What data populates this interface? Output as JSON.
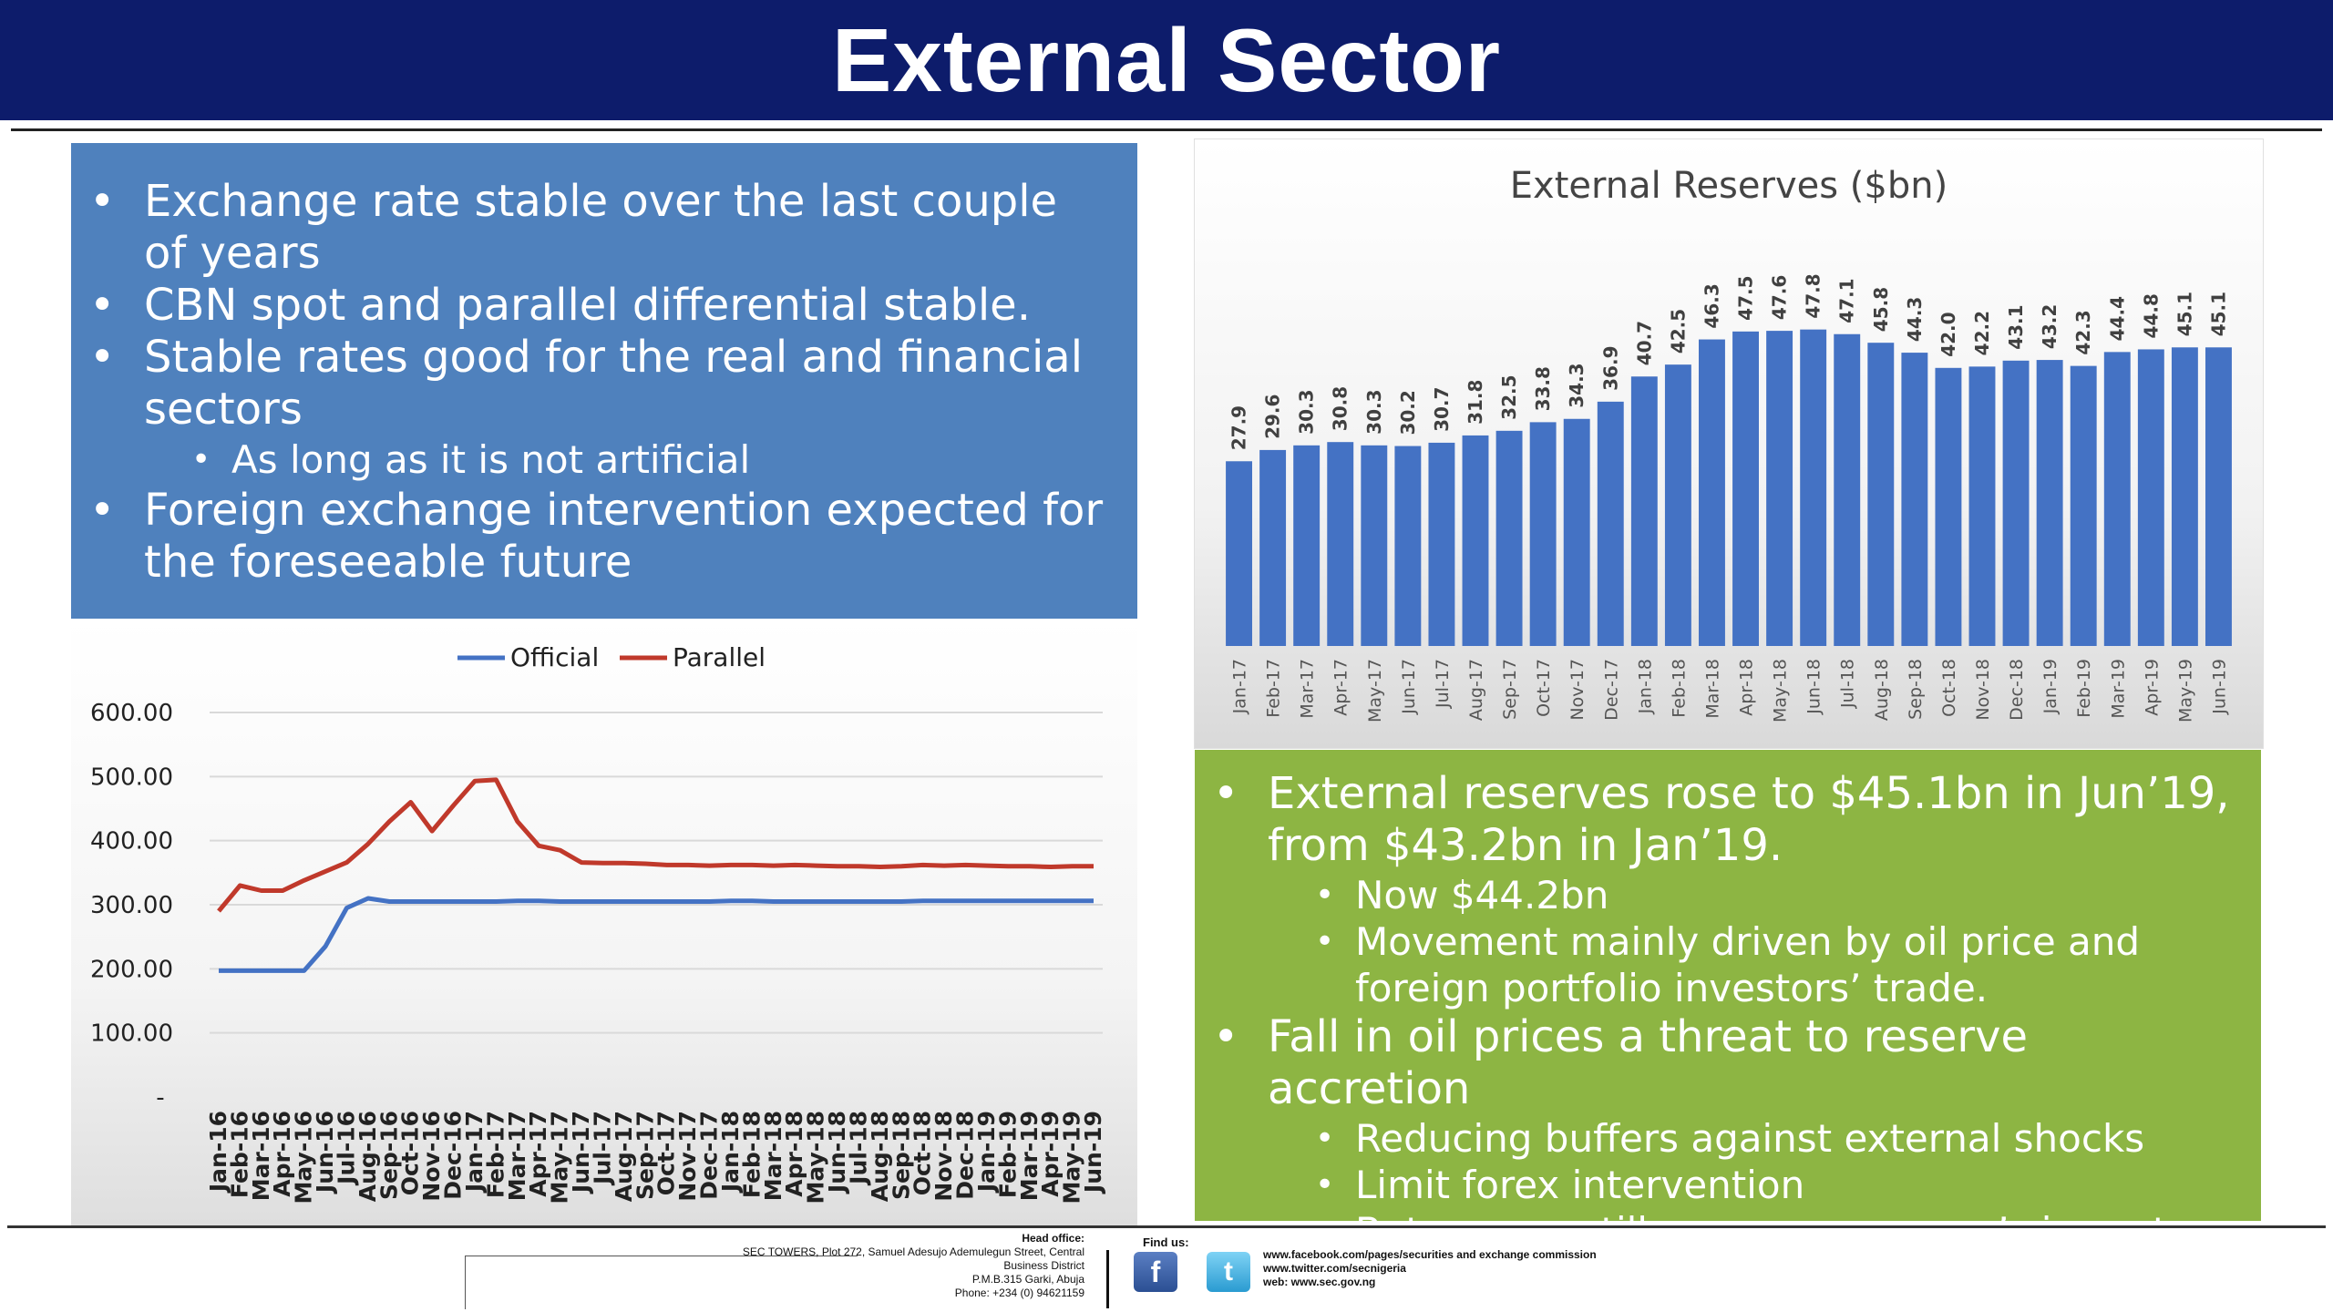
{
  "slide": {
    "title": "External Sector"
  },
  "exchange_panel": {
    "bullets": [
      {
        "level": 1,
        "text": "Exchange rate stable over the last couple of years"
      },
      {
        "level": 1,
        "text": "CBN spot and parallel differential stable."
      },
      {
        "level": 1,
        "text": "Stable rates good for the real and financial sectors"
      },
      {
        "level": 2,
        "text": "As long as it is not artificial"
      },
      {
        "level": 1,
        "text": "Foreign exchange intervention expected for the foreseeable future"
      }
    ]
  },
  "reserves_panel": {
    "bullets": [
      {
        "level": 1,
        "text": "External reserves rose to $45.1bn in Jun’19, from $43.2bn in Jan’19."
      },
      {
        "level": 2,
        "text": "Now $44.2bn"
      },
      {
        "level": 2,
        "text": "Movement mainly driven by oil price and foreign portfolio investors’ trade."
      },
      {
        "level": 1,
        "text": "Fall in oil prices a threat to reserve accretion"
      },
      {
        "level": 2,
        "text": "Reducing buffers against external shocks"
      },
      {
        "level": 2,
        "text": "Limit forex intervention"
      },
      {
        "level": 2,
        "text": "But we can still cover over a year’s import"
      }
    ]
  },
  "chart_data": [
    {
      "type": "bar",
      "title": "External Reserves ($bn)",
      "categories": [
        "Jan-17",
        "Feb-17",
        "Mar-17",
        "Apr-17",
        "May-17",
        "Jun-17",
        "Jul-17",
        "Aug-17",
        "Sep-17",
        "Oct-17",
        "Nov-17",
        "Dec-17",
        "Jan-18",
        "Feb-18",
        "Mar-18",
        "Apr-18",
        "May-18",
        "Jun-18",
        "Jul-18",
        "Aug-18",
        "Sep-18",
        "Oct-18",
        "Nov-18",
        "Dec-18",
        "Jan-19",
        "Feb-19",
        "Mar-19",
        "Apr-19",
        "May-19",
        "Jun-19"
      ],
      "values": [
        27.9,
        29.6,
        30.3,
        30.8,
        30.3,
        30.2,
        30.7,
        31.8,
        32.5,
        33.8,
        34.3,
        36.9,
        40.7,
        42.5,
        46.3,
        47.5,
        47.6,
        47.8,
        47.1,
        45.8,
        44.3,
        42.0,
        42.2,
        43.1,
        43.2,
        42.3,
        44.4,
        44.8,
        45.1,
        45.1
      ],
      "data_labels": [
        "27.9",
        "29.6",
        "30.3",
        "30.8",
        "30.3",
        "30.2",
        "30.7",
        "31.8",
        "32.5",
        "33.8",
        "34.3",
        "36.9",
        "40.7",
        "42.5",
        "46.3",
        "47.5",
        "47.6",
        "47.8",
        "47.1",
        "45.8",
        "44.3",
        "42.0",
        "42.2",
        "43.1",
        "43.2",
        "42.3",
        "44.4",
        "44.8",
        "45.1",
        "45.1"
      ],
      "ylim": [
        0,
        60
      ],
      "bar_color": "#4472c4",
      "grid": false,
      "legend": false
    },
    {
      "type": "line",
      "x": [
        "Jan-16",
        "Feb-16",
        "Mar-16",
        "Apr-16",
        "May-16",
        "Jun-16",
        "Jul-16",
        "Aug-16",
        "Sep-16",
        "Oct-16",
        "Nov-16",
        "Dec-16",
        "Jan-17",
        "Feb-17",
        "Mar-17",
        "Apr-17",
        "May-17",
        "Jun-17",
        "Jul-17",
        "Aug-17",
        "Sep-17",
        "Oct-17",
        "Nov-17",
        "Dec-17",
        "Jan-18",
        "Feb-18",
        "Mar-18",
        "Apr-18",
        "May-18",
        "Jun-18",
        "Jul-18",
        "Aug-18",
        "Sep-18",
        "Oct-18",
        "Nov-18",
        "Dec-18",
        "Jan-19",
        "Feb-19",
        "Mar-19",
        "Apr-19",
        "May-19",
        "Jun-19"
      ],
      "series": [
        {
          "name": "Official",
          "color": "#4472c4",
          "values": [
            197,
            197,
            197,
            197,
            197,
            235,
            295,
            310,
            305,
            305,
            305,
            305,
            305,
            305,
            306,
            306,
            305,
            305,
            305,
            305,
            305,
            305,
            305,
            305,
            306,
            306,
            305,
            305,
            305,
            305,
            305,
            305,
            305,
            306,
            306,
            306,
            306,
            306,
            306,
            306,
            306,
            306
          ]
        },
        {
          "name": "Parallel",
          "color": "#c0392b",
          "values": [
            290,
            330,
            322,
            322,
            338,
            352,
            366,
            395,
            430,
            460,
            415,
            455,
            493,
            495,
            430,
            392,
            385,
            366,
            365,
            365,
            364,
            362,
            362,
            361,
            362,
            362,
            361,
            362,
            361,
            360,
            360,
            359,
            360,
            362,
            361,
            362,
            361,
            360,
            360,
            359,
            360,
            360
          ]
        }
      ],
      "y_ticks": [
        "600.00",
        "500.00",
        "400.00",
        "300.00",
        "200.00",
        "100.00",
        "-"
      ],
      "ylim": [
        0,
        600
      ],
      "grid": true,
      "legend": "top-center"
    }
  ],
  "footer": {
    "head_office_label": "Head office:",
    "address_lines": [
      "SEC TOWERS, Plot 272, Samuel Adesujo Ademulegun Street, Central",
      "Business District",
      "P.M.B.315 Garki, Abuja",
      "Phone: +234 (0) 94621159"
    ],
    "find_us_label": "Find us:",
    "facebook_glyph": "f",
    "twitter_glyph": "t",
    "links": [
      "www.facebook.com/pages/securities and exchange commission",
      "www.twitter.com/secnigeria",
      "web: www.sec.gov.ng"
    ]
  }
}
